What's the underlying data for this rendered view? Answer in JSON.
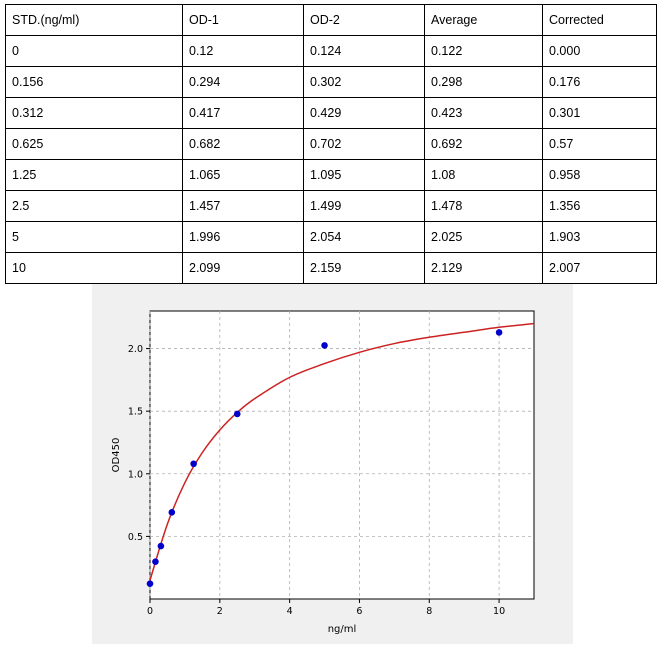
{
  "table": {
    "headers": [
      "STD.(ng/ml)",
      "OD-1",
      "OD-2",
      "Average",
      "Corrected"
    ],
    "rows": [
      [
        "0",
        "0.12",
        "0.124",
        "0.122",
        "0.000"
      ],
      [
        "0.156",
        "0.294",
        "0.302",
        "0.298",
        "0.176"
      ],
      [
        "0.312",
        "0.417",
        "0.429",
        "0.423",
        "0.301"
      ],
      [
        "0.625",
        "0.682",
        "0.702",
        "0.692",
        "0.57"
      ],
      [
        "1.25",
        "1.065",
        "1.095",
        "1.08",
        "0.958"
      ],
      [
        "2.5",
        "1.457",
        "1.499",
        "1.478",
        "1.356"
      ],
      [
        "5",
        "1.996",
        "2.054",
        "2.025",
        "1.903"
      ],
      [
        "10",
        "2.099",
        "2.159",
        "2.129",
        "2.007"
      ]
    ]
  },
  "chart_data": {
    "type": "scatter",
    "xlabel": "ng/ml",
    "ylabel": "OD450",
    "xlim": [
      0,
      11
    ],
    "ylim": [
      0,
      2.3
    ],
    "xticks": [
      0,
      2,
      4,
      6,
      8,
      10
    ],
    "yticks": [
      0.5,
      1.0,
      1.5,
      2.0
    ],
    "xtick_labels": [
      "0",
      "2",
      "4",
      "6",
      "8",
      "10"
    ],
    "ytick_labels": [
      "0.5",
      "1.0",
      "1.5",
      "2.0"
    ],
    "grid": true,
    "points": {
      "x": [
        0,
        0.156,
        0.312,
        0.625,
        1.25,
        2.5,
        5,
        10
      ],
      "y": [
        0.122,
        0.298,
        0.423,
        0.692,
        1.08,
        1.478,
        2.025,
        2.129
      ],
      "color": "#0000cc"
    },
    "fit_curve": {
      "x": [
        0,
        0.5,
        1,
        1.5,
        2,
        2.5,
        3,
        4,
        5,
        6,
        7,
        8,
        9,
        10,
        11
      ],
      "y": [
        0.15,
        0.6,
        0.93,
        1.17,
        1.35,
        1.49,
        1.6,
        1.77,
        1.88,
        1.97,
        2.04,
        2.09,
        2.13,
        2.17,
        2.2
      ],
      "color": "#cc2222"
    }
  }
}
